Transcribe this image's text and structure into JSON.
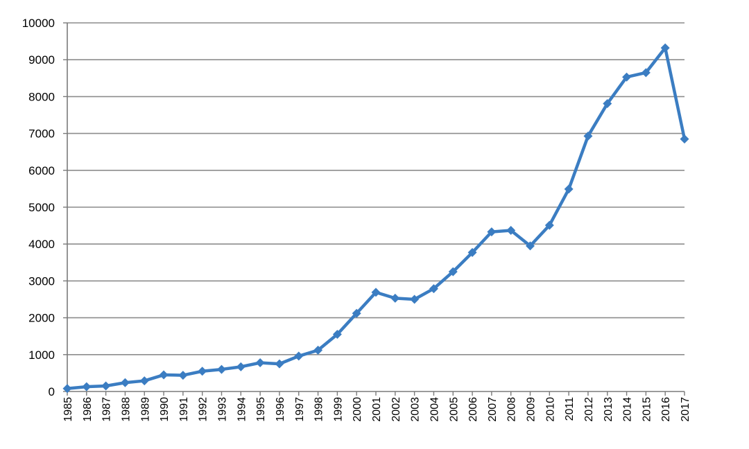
{
  "chart_data": {
    "type": "line",
    "title": "",
    "xlabel": "",
    "ylabel": "",
    "ylim": [
      0,
      10000
    ],
    "yticks": [
      0,
      1000,
      2000,
      3000,
      4000,
      5000,
      6000,
      7000,
      8000,
      9000,
      10000
    ],
    "grid": true,
    "legend": "none",
    "x": [
      "1985",
      "1986",
      "1987",
      "1988",
      "1989",
      "1990",
      "1991",
      "1992",
      "1993",
      "1994",
      "1995",
      "1996",
      "1997",
      "1998",
      "1999",
      "2000",
      "2001",
      "2002",
      "2003",
      "2004",
      "2005",
      "2006",
      "2007",
      "2008",
      "2009",
      "2010",
      "2011",
      "2012",
      "2013",
      "2014",
      "2015",
      "2016",
      "2017"
    ],
    "series": [
      {
        "color": "#3b7dc2",
        "marker": "diamond",
        "values": [
          80,
          130,
          150,
          240,
          290,
          450,
          440,
          550,
          600,
          670,
          780,
          750,
          960,
          1120,
          1550,
          2120,
          2690,
          2530,
          2500,
          2790,
          3250,
          3770,
          4330,
          4370,
          3950,
          4510,
          5490,
          6930,
          7810,
          8530,
          8650,
          9320,
          6850
        ]
      }
    ]
  }
}
